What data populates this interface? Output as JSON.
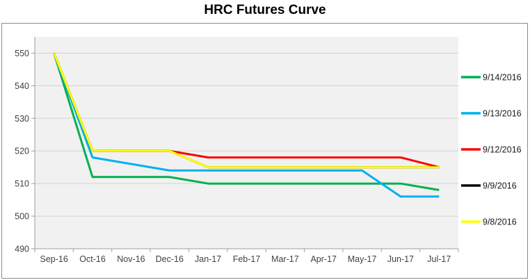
{
  "chart_data": {
    "type": "line",
    "title": "HRC Futures Curve",
    "categories": [
      "Sep-16",
      "Oct-16",
      "Nov-16",
      "Dec-16",
      "Jan-17",
      "Feb-17",
      "Mar-17",
      "Apr-17",
      "May-17",
      "Jun-17",
      "Jul-17"
    ],
    "y_ticks": [
      490,
      500,
      510,
      520,
      530,
      540,
      550
    ],
    "ylim": [
      490,
      555
    ],
    "grid": true,
    "legend_position": "right",
    "series": [
      {
        "name": "9/14/2016",
        "color": "#00B050",
        "values": [
          550,
          512,
          512,
          512,
          510,
          510,
          510,
          510,
          510,
          510,
          508
        ]
      },
      {
        "name": "9/13/2016",
        "color": "#00B0F0",
        "values": [
          550,
          518,
          516,
          514,
          514,
          514,
          514,
          514,
          514,
          506,
          506
        ]
      },
      {
        "name": "9/12/2016",
        "color": "#FF0000",
        "values": [
          550,
          520,
          520,
          520,
          518,
          518,
          518,
          518,
          518,
          518,
          515
        ]
      },
      {
        "name": "9/9/2016",
        "color": "#000000",
        "values": [
          550,
          520,
          520,
          520,
          515,
          515,
          515,
          515,
          515,
          515,
          515
        ]
      },
      {
        "name": "9/8/2016",
        "color": "#FFFF00",
        "values": [
          550,
          520,
          520,
          520,
          515,
          515,
          515,
          515,
          515,
          515,
          515
        ]
      }
    ]
  },
  "colors": {
    "plot_bg": "#F1F1F1",
    "gridline": "#D2D2D2",
    "axis": "#9E9E9E",
    "frame_border": "#8A8A8A",
    "tick_label": "#3F3F3F",
    "legend_text": "#1A1A1A"
  }
}
